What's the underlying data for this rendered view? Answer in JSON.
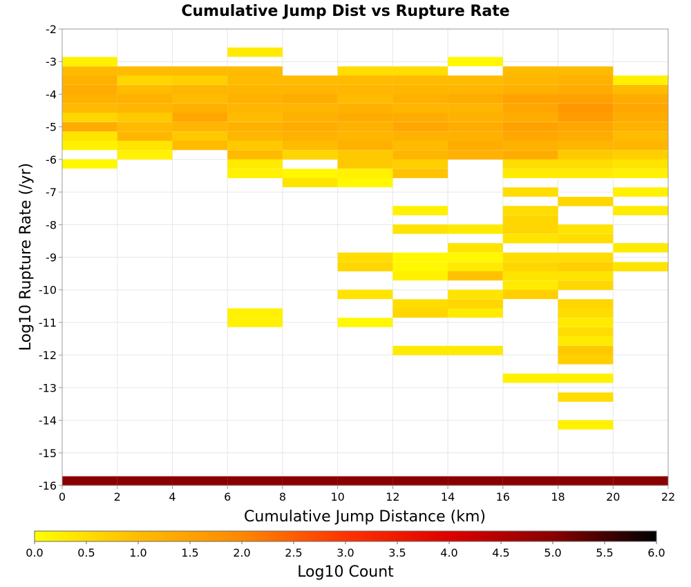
{
  "chart_data": {
    "type": "heatmap",
    "title": "Cumulative Jump Dist vs Rupture Rate",
    "xlabel": "Cumulative Jump Distance (km)",
    "ylabel": "Log10 Rupture Rate (/yr)",
    "xlim": [
      0,
      22
    ],
    "ylim": [
      -16,
      -2
    ],
    "x_ticks": [
      "0",
      "2",
      "4",
      "6",
      "8",
      "10",
      "12",
      "14",
      "16",
      "18",
      "20",
      "22"
    ],
    "y_ticks": [
      "-2",
      "-3",
      "-4",
      "-5",
      "-6",
      "-7",
      "-8",
      "-9",
      "-10",
      "-11",
      "-12",
      "-13",
      "-14",
      "-15",
      "-16"
    ],
    "grid": true,
    "x_bin_width": 2,
    "y_bin_height": 0.286,
    "colorbar": {
      "label": "Log10 Count",
      "range": [
        0,
        6
      ],
      "ticks": [
        "0.0",
        "0.5",
        "1.0",
        "1.5",
        "2.0",
        "2.5",
        "3.0",
        "3.5",
        "4.0",
        "4.5",
        "5.0",
        "5.5",
        "6.0"
      ],
      "colors": [
        "#ffff00",
        "#ffbb00",
        "#ff8800",
        "#ff3300",
        "#dd0000",
        "#880000",
        "#000000"
      ]
    },
    "cells": [
      [
        0,
        -3.0,
        0.2
      ],
      [
        0,
        -3.29,
        1.0
      ],
      [
        0,
        -3.57,
        1.2
      ],
      [
        0,
        -3.86,
        1.3
      ],
      [
        0,
        -4.14,
        1.2
      ],
      [
        0,
        -4.43,
        1.0
      ],
      [
        0,
        -4.71,
        0.6
      ],
      [
        0,
        -5.0,
        1.3
      ],
      [
        0,
        -5.29,
        0.4
      ],
      [
        0,
        -5.57,
        0.2
      ],
      [
        0,
        -6.14,
        0.1
      ],
      [
        2,
        -3.29,
        1.0
      ],
      [
        2,
        -3.57,
        0.6
      ],
      [
        2,
        -3.86,
        1.0
      ],
      [
        2,
        -4.14,
        1.2
      ],
      [
        2,
        -4.43,
        1.1
      ],
      [
        2,
        -4.71,
        0.8
      ],
      [
        2,
        -5.0,
        1.0
      ],
      [
        2,
        -5.29,
        1.1
      ],
      [
        2,
        -5.57,
        0.4
      ],
      [
        2,
        -5.86,
        0.2
      ],
      [
        4,
        -3.29,
        1.0
      ],
      [
        4,
        -3.57,
        0.7
      ],
      [
        4,
        -3.86,
        1.1
      ],
      [
        4,
        -4.14,
        1.0
      ],
      [
        4,
        -4.43,
        1.2
      ],
      [
        4,
        -4.71,
        1.4
      ],
      [
        4,
        -5.0,
        1.1
      ],
      [
        4,
        -5.29,
        0.8
      ],
      [
        4,
        -5.57,
        1.0
      ],
      [
        6,
        -2.71,
        0.3
      ],
      [
        6,
        -3.29,
        1.0
      ],
      [
        6,
        -3.57,
        1.0
      ],
      [
        6,
        -3.86,
        1.1
      ],
      [
        6,
        -4.14,
        1.2
      ],
      [
        6,
        -4.43,
        1.1
      ],
      [
        6,
        -4.71,
        1.0
      ],
      [
        6,
        -5.0,
        1.2
      ],
      [
        6,
        -5.29,
        1.1
      ],
      [
        6,
        -5.57,
        0.8
      ],
      [
        6,
        -5.86,
        1.0
      ],
      [
        6,
        -6.14,
        0.3
      ],
      [
        6,
        -6.43,
        0.2
      ],
      [
        6,
        -10.71,
        0.2
      ],
      [
        6,
        -11.0,
        0.2
      ],
      [
        8,
        -3.57,
        1.0
      ],
      [
        8,
        -3.86,
        1.1
      ],
      [
        8,
        -4.14,
        1.3
      ],
      [
        8,
        -4.43,
        1.1
      ],
      [
        8,
        -4.71,
        1.2
      ],
      [
        8,
        -5.0,
        1.3
      ],
      [
        8,
        -5.29,
        1.2
      ],
      [
        8,
        -5.57,
        1.0
      ],
      [
        8,
        -5.86,
        0.6
      ],
      [
        8,
        -6.43,
        0.1
      ],
      [
        8,
        -6.71,
        0.4
      ],
      [
        10,
        -3.29,
        0.5
      ],
      [
        10,
        -3.57,
        1.0
      ],
      [
        10,
        -3.86,
        1.1
      ],
      [
        10,
        -4.14,
        1.0
      ],
      [
        10,
        -4.43,
        1.2
      ],
      [
        10,
        -4.71,
        1.3
      ],
      [
        10,
        -5.0,
        1.2
      ],
      [
        10,
        -5.29,
        1.1
      ],
      [
        10,
        -5.57,
        1.2
      ],
      [
        10,
        -5.86,
        0.8
      ],
      [
        10,
        -6.14,
        0.8
      ],
      [
        10,
        -6.43,
        0.2
      ],
      [
        10,
        -6.71,
        0.1
      ],
      [
        10,
        -9.0,
        0.5
      ],
      [
        10,
        -9.29,
        0.6
      ],
      [
        10,
        -10.14,
        0.4
      ],
      [
        10,
        -11.0,
        0.1
      ],
      [
        12,
        -3.29,
        0.5
      ],
      [
        12,
        -3.57,
        1.0
      ],
      [
        12,
        -3.86,
        1.1
      ],
      [
        12,
        -4.14,
        1.2
      ],
      [
        12,
        -4.43,
        1.1
      ],
      [
        12,
        -4.71,
        1.3
      ],
      [
        12,
        -5.0,
        1.4
      ],
      [
        12,
        -5.29,
        1.2
      ],
      [
        12,
        -5.57,
        1.0
      ],
      [
        12,
        -5.86,
        1.1
      ],
      [
        12,
        -6.14,
        0.7
      ],
      [
        12,
        -6.43,
        0.9
      ],
      [
        12,
        -7.57,
        0.2
      ],
      [
        12,
        -8.14,
        0.4
      ],
      [
        12,
        -9.0,
        0.1
      ],
      [
        12,
        -9.29,
        0.1
      ],
      [
        12,
        -9.57,
        0.2
      ],
      [
        12,
        -10.43,
        0.5
      ],
      [
        12,
        -10.71,
        0.6
      ],
      [
        12,
        -11.86,
        0.3
      ],
      [
        14,
        -3.0,
        0.1
      ],
      [
        14,
        -3.57,
        1.0
      ],
      [
        14,
        -3.86,
        1.1
      ],
      [
        14,
        -4.14,
        1.3
      ],
      [
        14,
        -4.43,
        1.1
      ],
      [
        14,
        -4.71,
        1.2
      ],
      [
        14,
        -5.0,
        1.3
      ],
      [
        14,
        -5.29,
        1.2
      ],
      [
        14,
        -5.57,
        1.3
      ],
      [
        14,
        -5.86,
        1.2
      ],
      [
        14,
        -8.14,
        0.3
      ],
      [
        14,
        -8.71,
        0.4
      ],
      [
        14,
        -9.0,
        0.1
      ],
      [
        14,
        -9.29,
        0.3
      ],
      [
        14,
        -9.57,
        0.9
      ],
      [
        14,
        -10.14,
        0.4
      ],
      [
        14,
        -10.43,
        0.6
      ],
      [
        14,
        -10.71,
        0.3
      ],
      [
        14,
        -11.86,
        0.3
      ],
      [
        16,
        -3.29,
        1.0
      ],
      [
        16,
        -3.57,
        1.1
      ],
      [
        16,
        -3.86,
        1.2
      ],
      [
        16,
        -4.14,
        1.5
      ],
      [
        16,
        -4.43,
        1.4
      ],
      [
        16,
        -4.71,
        1.3
      ],
      [
        16,
        -5.0,
        1.5
      ],
      [
        16,
        -5.29,
        1.4
      ],
      [
        16,
        -5.57,
        1.2
      ],
      [
        16,
        -5.86,
        1.3
      ],
      [
        16,
        -6.14,
        0.5
      ],
      [
        16,
        -6.43,
        0.3
      ],
      [
        16,
        -7.0,
        0.5
      ],
      [
        16,
        -7.57,
        0.5
      ],
      [
        16,
        -7.86,
        0.6
      ],
      [
        16,
        -8.14,
        0.6
      ],
      [
        16,
        -8.43,
        0.4
      ],
      [
        16,
        -9.0,
        0.5
      ],
      [
        16,
        -9.29,
        0.6
      ],
      [
        16,
        -9.57,
        0.4
      ],
      [
        16,
        -9.86,
        0.3
      ],
      [
        16,
        -10.14,
        0.7
      ],
      [
        16,
        -12.71,
        0.2
      ],
      [
        18,
        -3.29,
        1.0
      ],
      [
        18,
        -3.57,
        1.2
      ],
      [
        18,
        -3.86,
        1.3
      ],
      [
        18,
        -4.14,
        1.5
      ],
      [
        18,
        -4.43,
        1.7
      ],
      [
        18,
        -4.71,
        1.6
      ],
      [
        18,
        -5.0,
        1.4
      ],
      [
        18,
        -5.29,
        1.3
      ],
      [
        18,
        -5.57,
        1.1
      ],
      [
        18,
        -5.86,
        0.8
      ],
      [
        18,
        -6.14,
        0.5
      ],
      [
        18,
        -6.43,
        0.3
      ],
      [
        18,
        -7.29,
        0.6
      ],
      [
        18,
        -8.14,
        0.4
      ],
      [
        18,
        -8.43,
        0.5
      ],
      [
        18,
        -9.0,
        0.5
      ],
      [
        18,
        -9.29,
        0.7
      ],
      [
        18,
        -9.57,
        0.4
      ],
      [
        18,
        -9.86,
        0.6
      ],
      [
        18,
        -10.43,
        0.6
      ],
      [
        18,
        -10.71,
        0.5
      ],
      [
        18,
        -11.0,
        0.3
      ],
      [
        18,
        -11.29,
        0.5
      ],
      [
        18,
        -11.57,
        0.3
      ],
      [
        18,
        -11.86,
        0.8
      ],
      [
        18,
        -12.14,
        0.7
      ],
      [
        18,
        -12.71,
        0.2
      ],
      [
        18,
        -13.29,
        0.5
      ],
      [
        18,
        -14.14,
        0.2
      ],
      [
        20,
        -3.57,
        0.2
      ],
      [
        20,
        -3.86,
        1.0
      ],
      [
        20,
        -4.14,
        1.3
      ],
      [
        20,
        -4.43,
        1.4
      ],
      [
        20,
        -4.71,
        1.3
      ],
      [
        20,
        -5.0,
        1.2
      ],
      [
        20,
        -5.29,
        1.0
      ],
      [
        20,
        -5.57,
        1.1
      ],
      [
        20,
        -5.86,
        0.7
      ],
      [
        20,
        -6.14,
        0.4
      ],
      [
        20,
        -6.43,
        0.2
      ],
      [
        20,
        -7.0,
        0.2
      ],
      [
        20,
        -7.57,
        0.3
      ],
      [
        20,
        -8.71,
        0.3
      ],
      [
        20,
        -9.29,
        0.4
      ],
      [
        0,
        -15.86,
        5.0
      ],
      [
        2,
        -15.86,
        5.0
      ],
      [
        4,
        -15.86,
        5.0
      ],
      [
        6,
        -15.86,
        5.0
      ],
      [
        8,
        -15.86,
        5.0
      ],
      [
        10,
        -15.86,
        5.0
      ],
      [
        12,
        -15.86,
        5.0
      ],
      [
        14,
        -15.86,
        5.0
      ],
      [
        16,
        -15.86,
        5.0
      ],
      [
        18,
        -15.86,
        5.0
      ],
      [
        20,
        -15.86,
        5.0
      ]
    ]
  }
}
